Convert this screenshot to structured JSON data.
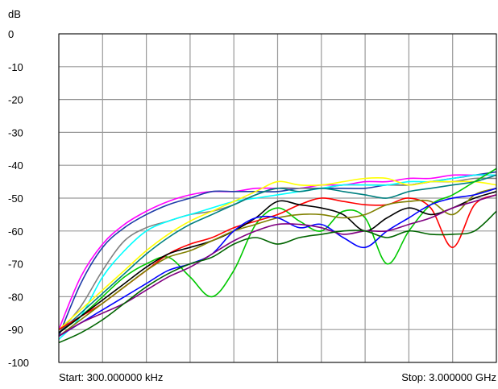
{
  "chart_data": {
    "type": "line",
    "title": "",
    "ylabel": "dB",
    "xlabel": "",
    "ylim": [
      -100,
      0
    ],
    "yticks": [
      0,
      -10,
      -20,
      -30,
      -40,
      -50,
      -60,
      -70,
      -80,
      -90,
      -100
    ],
    "ytick_labels": [
      "0",
      "-10",
      "-20",
      "-30",
      "-40",
      "-50",
      "-60",
      "-70",
      "-80",
      "-90",
      "-100"
    ],
    "x_start_label": "Start: 300.000000 kHz",
    "x_stop_label": "Stop: 3.000000 GHz",
    "x_divisions": 10,
    "grid": true,
    "series": [
      {
        "color": "#ff00ff",
        "values": [
          -90,
          -74,
          -64,
          -58,
          -54,
          -51,
          -49,
          -48,
          -48,
          -47,
          -47,
          -47,
          -46,
          -46,
          -45,
          -45,
          -44,
          -44,
          -43,
          -43,
          -43
        ]
      },
      {
        "color": "#1e3ca8",
        "values": [
          -92,
          -76,
          -65,
          -59,
          -55,
          -52,
          -50,
          -48,
          -48,
          -48,
          -48,
          -47,
          -47,
          -47,
          -47,
          -46,
          -46,
          -45,
          -44,
          -43,
          -42
        ]
      },
      {
        "color": "#808080",
        "values": [
          -91,
          -83,
          -72,
          -63,
          -59,
          -57,
          -55,
          -54,
          -52,
          -49,
          -47,
          -47,
          -47,
          -46,
          -46,
          -46,
          -46,
          -45,
          -45,
          -44,
          -44
        ]
      },
      {
        "color": "#00ffff",
        "values": [
          -93,
          -86,
          -74,
          -66,
          -60,
          -57,
          -55,
          -53,
          -51,
          -50,
          -49,
          -48,
          -47,
          -46,
          -46,
          -46,
          -45,
          -45,
          -44,
          -43,
          -43
        ]
      },
      {
        "color": "#ffff00",
        "values": [
          -90,
          -84,
          -78,
          -72,
          -66,
          -61,
          -57,
          -54,
          -51,
          -48,
          -45,
          -46,
          -46,
          -45,
          -44,
          -44,
          -46,
          -45,
          -45,
          -45,
          -46
        ]
      },
      {
        "color": "#008080",
        "values": [
          -91,
          -85,
          -79,
          -73,
          -67,
          -62,
          -58,
          -55,
          -52,
          -49,
          -47,
          -48,
          -47,
          -48,
          -49,
          -50,
          -48,
          -47,
          -46,
          -45,
          -43
        ]
      },
      {
        "color": "#00c800",
        "values": [
          -91,
          -86,
          -80,
          -74,
          -70,
          -68,
          -74,
          -80,
          -72,
          -58,
          -53,
          -57,
          -60,
          -54,
          -56,
          -70,
          -60,
          -52,
          -49,
          -45,
          -41
        ]
      },
      {
        "color": "#ff0000",
        "values": [
          -90,
          -86,
          -82,
          -77,
          -72,
          -67,
          -64,
          -62,
          -59,
          -57,
          -55,
          -52,
          -50,
          -51,
          -52,
          -52,
          -50,
          -53,
          -65,
          -52,
          -49
        ]
      },
      {
        "color": "#000000",
        "values": [
          -91,
          -86,
          -81,
          -76,
          -71,
          -67,
          -65,
          -63,
          -60,
          -56,
          -51,
          -52,
          -53,
          -55,
          -60,
          -56,
          -53,
          -55,
          -53,
          -50,
          -48
        ]
      },
      {
        "color": "#808000",
        "values": [
          -92,
          -87,
          -82,
          -77,
          -72,
          -68,
          -66,
          -63,
          -60,
          -58,
          -56,
          -55,
          -55,
          -56,
          -55,
          -52,
          -51,
          -51,
          -55,
          -49,
          -47
        ]
      },
      {
        "color": "#0000ff",
        "values": [
          -92,
          -88,
          -84,
          -80,
          -76,
          -72,
          -70,
          -67,
          -60,
          -56,
          -56,
          -59,
          -58,
          -62,
          -65,
          -60,
          -56,
          -52,
          -50,
          -49,
          -47
        ]
      },
      {
        "color": "#800080",
        "values": [
          -92,
          -88,
          -85,
          -82,
          -78,
          -74,
          -71,
          -67,
          -63,
          -60,
          -58,
          -58,
          -59,
          -61,
          -60,
          -60,
          -58,
          -56,
          -53,
          -51,
          -49
        ]
      },
      {
        "color": "#006400",
        "values": [
          -94,
          -91,
          -87,
          -82,
          -77,
          -73,
          -70,
          -68,
          -64,
          -62,
          -64,
          -62,
          -61,
          -60,
          -60,
          -62,
          -60,
          -61,
          -61,
          -60,
          -54
        ]
      }
    ]
  }
}
